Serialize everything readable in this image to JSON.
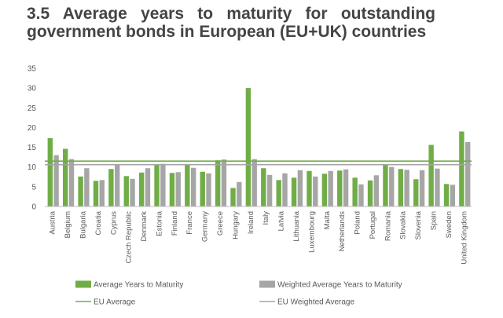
{
  "header": {
    "title": "3.5  Average years to maturity for outstanding government bonds in European (EU+UK) countries"
  },
  "chart_data": {
    "type": "bar",
    "ylim": [
      0,
      35
    ],
    "yticks": [
      0,
      5,
      10,
      15,
      20,
      25,
      30,
      35
    ],
    "grid": false,
    "legend_position": "bottom",
    "categories": [
      "Austria",
      "Belgium",
      "Bulgaria",
      "Croatia",
      "Cyprus",
      "Czech Republic",
      "Denmark",
      "Estonia",
      "Finland",
      "France",
      "Germany",
      "Greece",
      "Hungary",
      "Ireland",
      "Italy",
      "Latvia",
      "Lithuania",
      "Luxembourg",
      "Malta",
      "Netherlands",
      "Poland",
      "Portugal",
      "Romania",
      "Slovakia",
      "Slovenia",
      "Spain",
      "Sweden",
      "United Kingdom"
    ],
    "series": [
      {
        "name": "Average Years to Maturity",
        "color": "#70AD47",
        "values": [
          17.3,
          14.6,
          7.6,
          6.5,
          9.5,
          7.7,
          8.6,
          10.7,
          8.5,
          10.6,
          8.8,
          11.7,
          4.7,
          30.0,
          9.7,
          6.7,
          7.3,
          9.0,
          8.3,
          9.1,
          7.3,
          6.6,
          10.6,
          9.5,
          6.9,
          15.6,
          5.7,
          19.0
        ]
      },
      {
        "name": "Weighted Average Years to Maturity",
        "color": "#A6A6A6",
        "values": [
          13.0,
          12.0,
          9.7,
          6.7,
          10.5,
          7.0,
          9.7,
          10.8,
          8.7,
          9.8,
          8.4,
          11.9,
          6.2,
          12.0,
          8.0,
          8.4,
          9.2,
          7.6,
          9.0,
          9.4,
          5.6,
          7.9,
          10.0,
          9.3,
          9.2,
          9.6,
          5.5,
          16.3
        ]
      }
    ],
    "reference_lines": [
      {
        "name": "EU Average",
        "value": 11.5,
        "color": "#70AD47"
      },
      {
        "name": "EU Weighted Average",
        "value": 10.6,
        "color": "#A6A6A6"
      }
    ]
  }
}
